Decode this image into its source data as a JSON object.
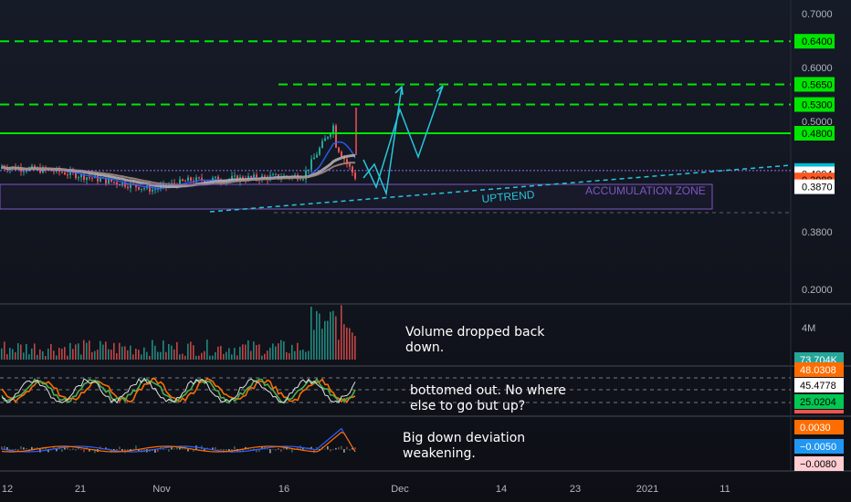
{
  "chart_data": {
    "type": "line",
    "symbol_pair_context": "",
    "price_axis": {
      "ticks": [
        "0.7000",
        "0.6000",
        "0.5000",
        "0.3800",
        "0.2000"
      ],
      "level_badges": [
        {
          "label": "0.6400",
          "value": 0.64,
          "color": "#00e600",
          "text_color": "#000000"
        },
        {
          "label": "0.5650",
          "value": 0.565,
          "color": "#00e600",
          "text_color": "#000000"
        },
        {
          "label": "0.5300",
          "value": 0.53,
          "color": "#00e600",
          "text_color": "#000000"
        },
        {
          "label": "0.4800",
          "value": 0.48,
          "color": "#00e600",
          "text_color": "#000000"
        },
        {
          "label": "0.4152",
          "value": 0.4152,
          "color": "#00bcd4",
          "text_color": "#000000"
        },
        {
          "label": "0.4094",
          "value": 0.4094,
          "color": "#ffffff",
          "text_color": "#000000"
        },
        {
          "label": "0.3988",
          "value": 0.3988,
          "color": "#ff5722",
          "text_color": "#000000"
        },
        {
          "label": "0.3870",
          "value": 0.387,
          "color": "#ffffff",
          "text_color": "#000000"
        }
      ]
    },
    "horizontal_levels": [
      {
        "value": 0.64,
        "style": "dashed",
        "color": "#00e600"
      },
      {
        "value": 0.565,
        "style": "dashed",
        "color": "#00e600"
      },
      {
        "value": 0.53,
        "style": "dashed",
        "color": "#00e600"
      },
      {
        "value": 0.48,
        "style": "solid",
        "color": "#00e600"
      },
      {
        "value": 0.4152,
        "style": "dotted",
        "color": "#9c6bff"
      }
    ],
    "x_axis": {
      "ticks": [
        "12",
        "21",
        "Nov",
        "16",
        "Dec",
        "14",
        "23",
        "2021",
        "11"
      ]
    },
    "annotations": {
      "uptrend_label": "UPTREND",
      "zone_label": "ACCUMULATION ZONE"
    },
    "volume_pane": {
      "axis_label": "4M",
      "badge": "73.704K",
      "note_lines": [
        "Volume dropped back",
        "down."
      ]
    },
    "oscillator_pane": {
      "badges": [
        "48.0308",
        "45.4778",
        "25.0204"
      ],
      "note_lines": [
        "bottomed out. No where",
        "else to go but up?"
      ]
    },
    "deviation_pane": {
      "badges": [
        "0.0030",
        "−0.0050",
        "−0.0080"
      ],
      "note_lines": [
        "Big down deviation",
        "weakening."
      ]
    },
    "colors": {
      "background": "#131722",
      "up": "#26a69a",
      "down": "#ef5350",
      "level": "#00e600",
      "projection": "#26c6da",
      "zone": "#7e57c2"
    }
  }
}
